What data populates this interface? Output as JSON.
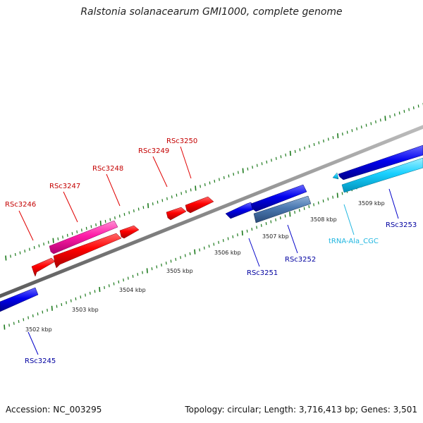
{
  "title": "Ralstonia solanacearum GMI1000, complete genome",
  "accession_label": "Accession: NC_003295",
  "summary_label": "Topology: circular; Length: 3,716,413 bp; Genes: 3,501",
  "colors": {
    "backbone": "#888888",
    "tick": "#1d7a1d",
    "forward_label": "#c40000",
    "reverse_label": "#0000a0",
    "trna_label": "#1fb6e0"
  },
  "ruler_labels": [
    "3502 kbp",
    "3503 kbp",
    "3504 kbp",
    "3505 kbp",
    "3506 kbp",
    "3507 kbp",
    "3508 kbp",
    "3509 kbp"
  ],
  "forward_genes": [
    {
      "label": "RSc3246",
      "color": "#ff0000"
    },
    {
      "label": "RSc3247",
      "color": "#ff0000"
    },
    {
      "label": "RSc3248",
      "color": "#ff0000"
    },
    {
      "label": "RSc3249",
      "color": "#ff0000"
    },
    {
      "label": "RSc3250",
      "color": "#ff0000"
    }
  ],
  "reverse_genes": [
    {
      "label": "RSc3245",
      "color": "#0000ee"
    },
    {
      "label": "RSc3251",
      "color": "#0000ee"
    },
    {
      "label": "RSc3252",
      "color": "#0000ee"
    },
    {
      "label": "RSc3253",
      "color": "#0000ee"
    }
  ],
  "rna_genes": [
    {
      "label": "tRNA-Ala_CGC",
      "color": "#00c8ff"
    }
  ]
}
